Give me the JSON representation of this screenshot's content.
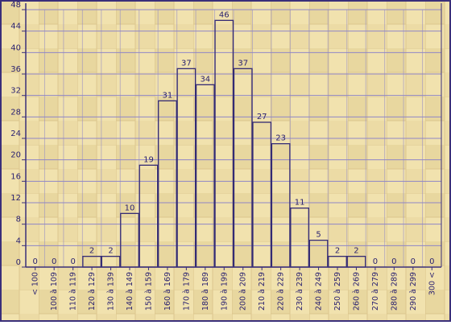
{
  "chart_data": {
    "type": "bar",
    "title": "",
    "xlabel": "",
    "ylabel": "",
    "ylim": [
      0,
      48
    ],
    "yticks": [
      0,
      4,
      8,
      12,
      16,
      20,
      24,
      28,
      32,
      36,
      40,
      44,
      48
    ],
    "grid": true,
    "legend": "none",
    "categories": [
      "< 100",
      "100 à 109",
      "110 à 119",
      "120 à 129",
      "130 à 139",
      "140 à 149",
      "150 à 159",
      "160 à 169",
      "170 à 179",
      "180 à 189",
      "190 à 199",
      "200 à 209",
      "210 à 219",
      "220 à 229",
      "230 à 239",
      "240 à 249",
      "250 à 259",
      "260 à 269",
      "270 à 279",
      "280 à 289",
      "290 à 299",
      "300 <"
    ],
    "values": [
      0,
      0,
      0,
      2,
      2,
      10,
      19,
      31,
      37,
      34,
      46,
      37,
      27,
      23,
      11,
      5,
      2,
      2,
      0,
      0,
      0,
      0
    ],
    "colors": {
      "background_light": "#f3e6b8",
      "background_dark": "#e2cd8e",
      "axis": "#3a2f7a",
      "grid": "#8f86c6",
      "bar_edge": "#332a74",
      "text": "#2a2170"
    }
  }
}
